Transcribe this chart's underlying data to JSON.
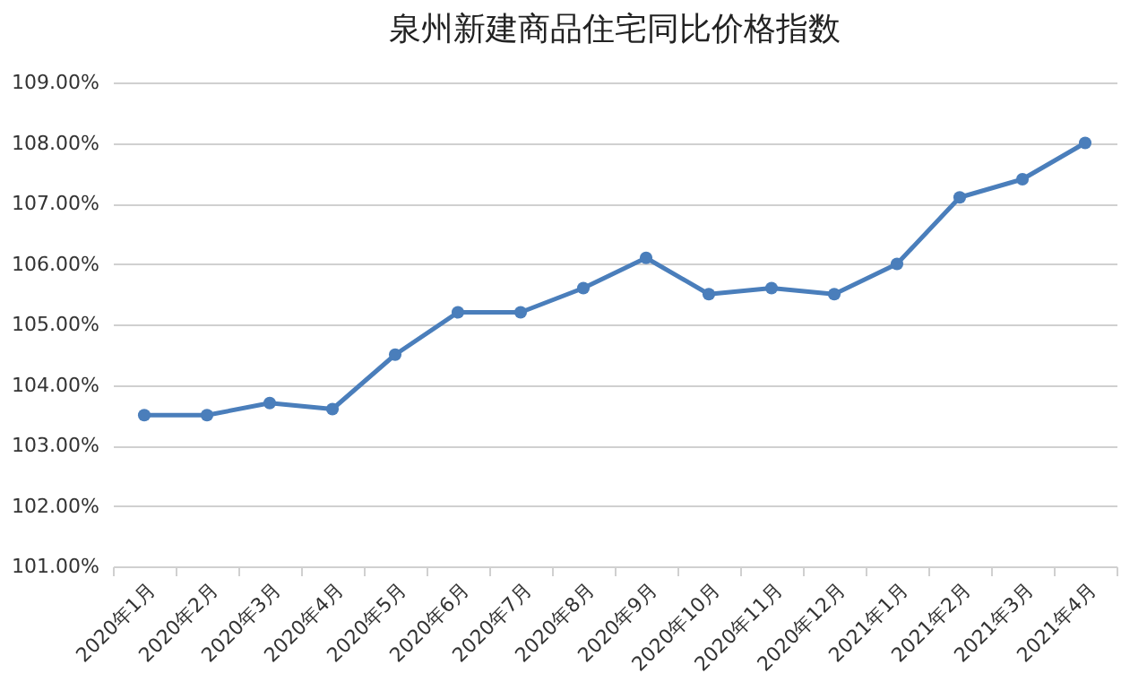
{
  "chart_data": {
    "type": "line",
    "title": "泉州新建商品住宅同比价格指数",
    "categories": [
      "2020年1月",
      "2020年2月",
      "2020年3月",
      "2020年4月",
      "2020年5月",
      "2020年6月",
      "2020年7月",
      "2020年8月",
      "2020年9月",
      "2020年10月",
      "2020年11月",
      "2020年12月",
      "2021年1月",
      "2021年2月",
      "2021年3月",
      "2021年4月"
    ],
    "series": [
      {
        "color": "#4a7ebb",
        "values": [
          103.5,
          103.5,
          103.7,
          103.6,
          104.5,
          105.2,
          105.2,
          105.6,
          106.1,
          105.5,
          105.6,
          105.5,
          106.0,
          107.1,
          107.4,
          108.0
        ]
      }
    ],
    "ylim": [
      101,
      109
    ],
    "yticks": [
      {
        "value": 101,
        "label": "101.00%"
      },
      {
        "value": 102,
        "label": "102.00%"
      },
      {
        "value": 103,
        "label": "103.00%"
      },
      {
        "value": 104,
        "label": "104.00%"
      },
      {
        "value": 105,
        "label": "105.00%"
      },
      {
        "value": 106,
        "label": "106.00%"
      },
      {
        "value": 107,
        "label": "107.00%"
      },
      {
        "value": 108,
        "label": "108.00%"
      },
      {
        "value": 109,
        "label": "109.00%"
      }
    ],
    "grid": "y",
    "marker": "circle"
  }
}
